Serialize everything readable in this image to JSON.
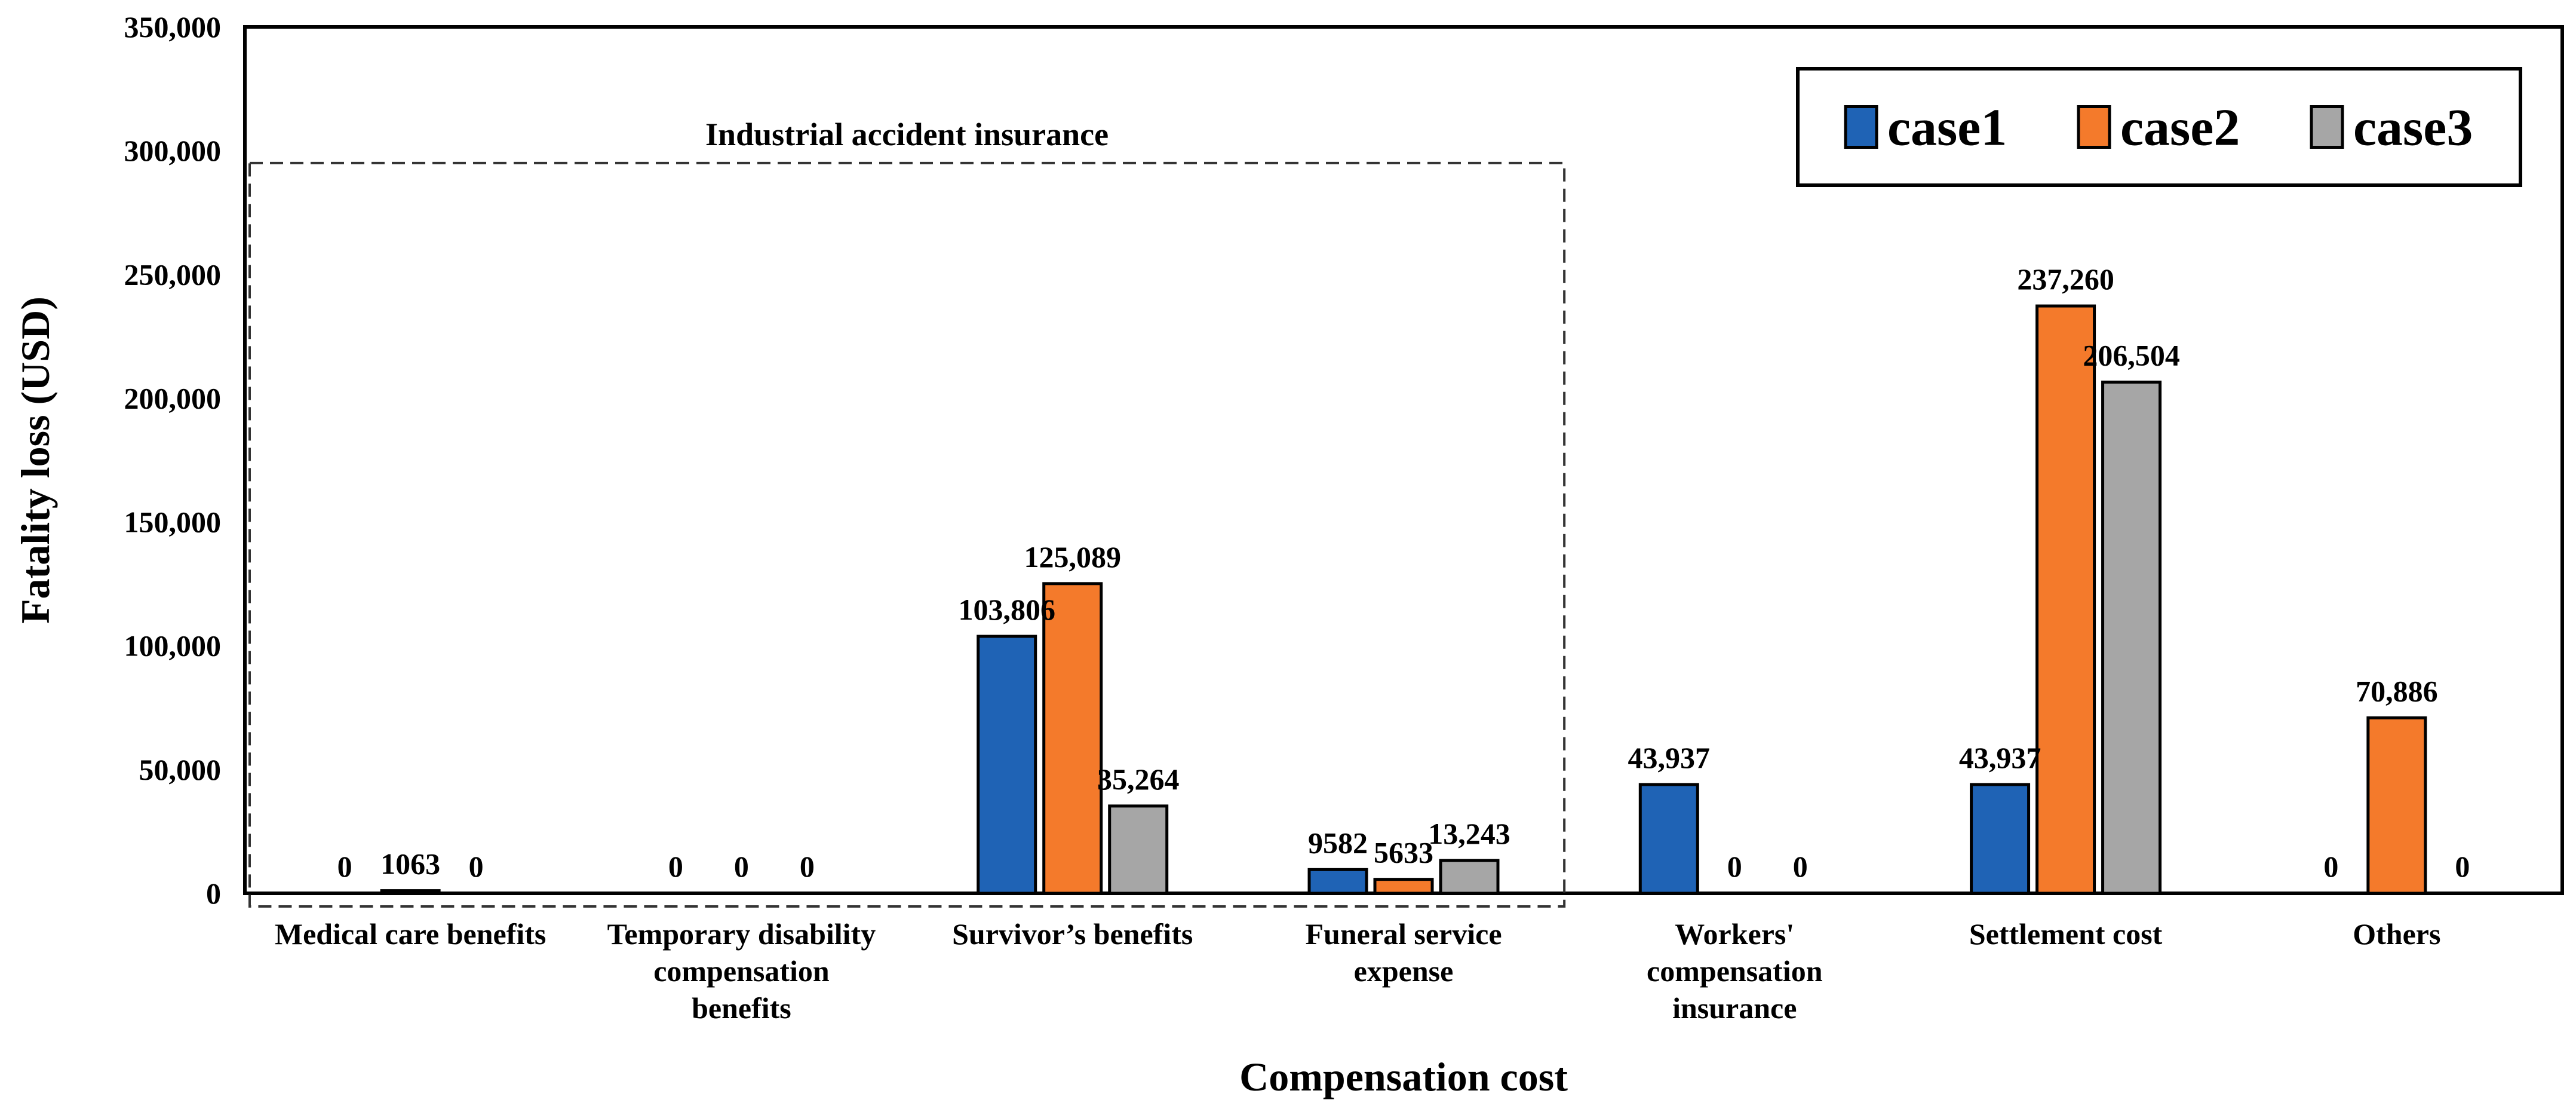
{
  "chart_data": {
    "type": "bar",
    "title": "",
    "xlabel": "Compensation cost",
    "ylabel": "Fatality loss (USD)",
    "ylim": [
      0,
      350000
    ],
    "yticks": [
      0,
      50000,
      100000,
      150000,
      200000,
      250000,
      300000,
      350000
    ],
    "ytick_labels": [
      "0",
      "50,000",
      "100,000",
      "150,000",
      "200,000",
      "250,000",
      "300,000",
      "350,000"
    ],
    "grid": false,
    "legend_position": "top-right",
    "categories": [
      [
        "Medical care benefits"
      ],
      [
        "Temporary disability",
        "compensation",
        "benefits"
      ],
      [
        "Survivor’s benefits"
      ],
      [
        "Funeral service",
        "expense"
      ],
      [
        "Workers'",
        "compensation",
        "insurance"
      ],
      [
        "Settlement cost"
      ],
      [
        "Others"
      ]
    ],
    "series": [
      {
        "name": "case1",
        "color": "#1f63b5",
        "values": [
          0,
          0,
          103806,
          9582,
          43937,
          43937,
          0
        ],
        "labels": [
          "0",
          "0",
          "103,806",
          "9582",
          "43,937",
          "43,937",
          "0"
        ]
      },
      {
        "name": "case2",
        "color": "#f47a2b",
        "values": [
          1063,
          0,
          125089,
          5633,
          0,
          237260,
          70886
        ],
        "labels": [
          "1063",
          "0",
          "125,089",
          "5633",
          "0",
          "237,260",
          "70,886"
        ]
      },
      {
        "name": "case3",
        "color": "#a6a6a6",
        "values": [
          0,
          0,
          35264,
          13243,
          0,
          206504,
          0
        ],
        "labels": [
          "0",
          "0",
          "35,264",
          "13,243",
          "0",
          "206,504",
          "0"
        ]
      }
    ],
    "annotations": [
      {
        "text": "Industrial accident insurance",
        "style": "dashed-box",
        "categories": [
          0,
          3
        ],
        "y_top": 295000
      }
    ]
  }
}
